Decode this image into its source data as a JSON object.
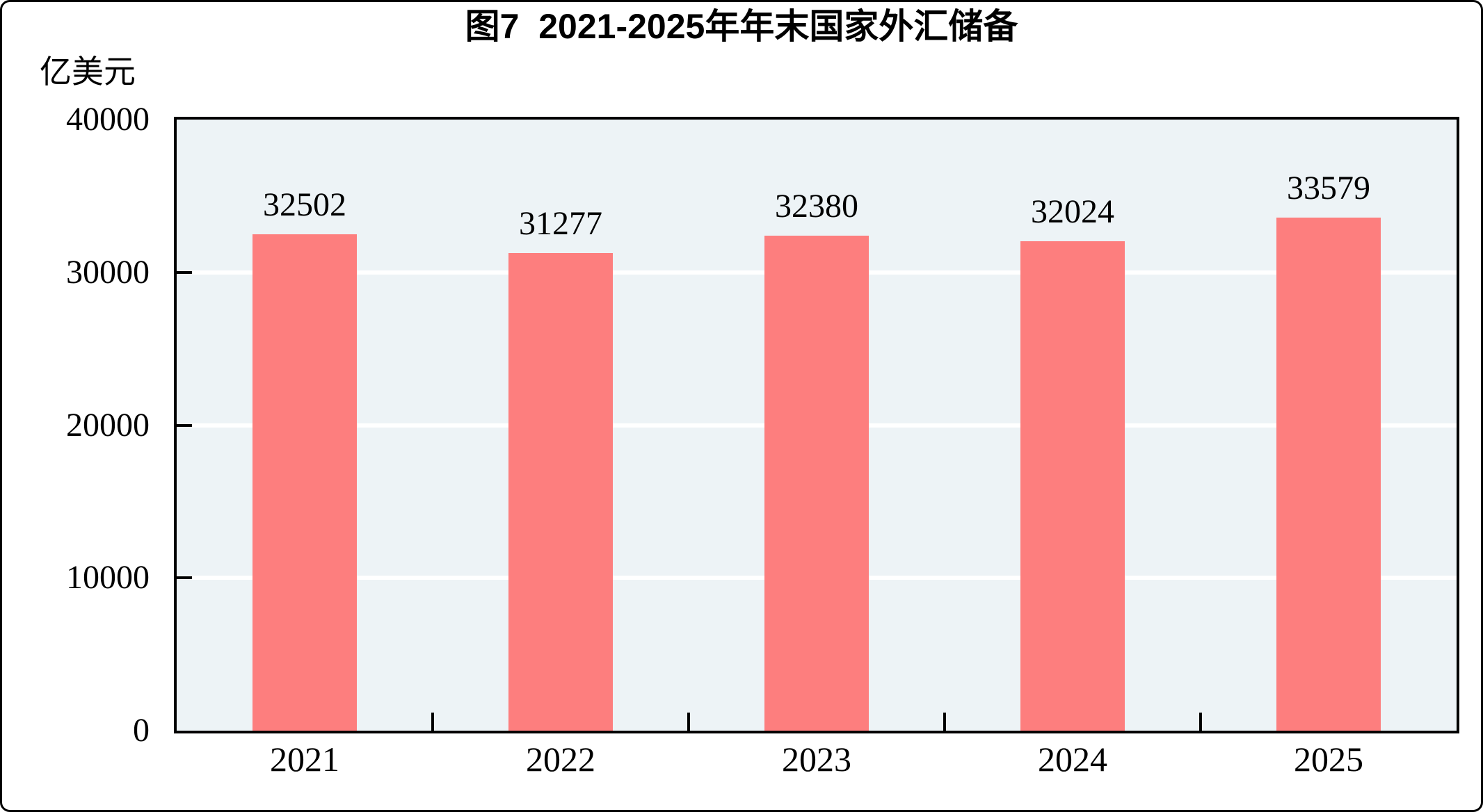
{
  "figure": {
    "title": "图7  2021-2025年年末国家外汇储备",
    "unit_label": "亿美元"
  },
  "chart_data": {
    "type": "bar",
    "title": "图7  2021-2025年年末国家外汇储备",
    "xlabel": "",
    "ylabel": "亿美元",
    "categories": [
      "2021",
      "2022",
      "2023",
      "2024",
      "2025"
    ],
    "values": [
      32502,
      31277,
      32380,
      32024,
      33579
    ],
    "ylim": [
      0,
      40000
    ],
    "yticks": [
      0,
      10000,
      20000,
      30000,
      40000
    ],
    "grid": "horizontal",
    "legend_position": "none",
    "colors": {
      "bar_fill": "#FD7E7E",
      "plot_background": "#EDF3F6",
      "gridline": "#FFFFFF",
      "axis": "#000000",
      "text": "#000000"
    }
  }
}
